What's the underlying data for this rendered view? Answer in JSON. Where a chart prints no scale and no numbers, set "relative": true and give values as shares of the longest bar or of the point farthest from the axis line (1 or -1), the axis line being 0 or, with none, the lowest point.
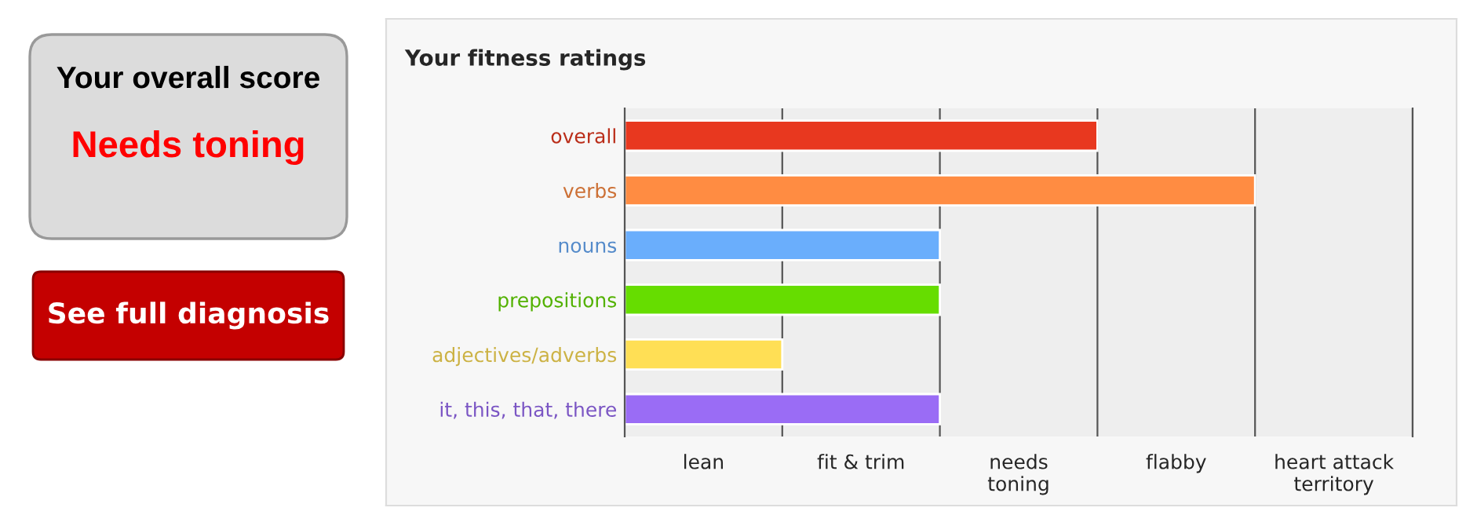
{
  "chart_data": [
    {
      "type": "other",
      "title": "Your overall score",
      "annotations": [
        "Needs toning",
        "See full diagnosis"
      ]
    },
    {
      "type": "bar",
      "orientation": "horizontal",
      "title": "Your fitness ratings",
      "categories": [
        "overall",
        "verbs",
        "nouns",
        "prepositions",
        "adjectives/adverbs",
        "it, this, that, there"
      ],
      "values": [
        0.75,
        1,
        0.5,
        0.5,
        0.25,
        0.5
      ],
      "relative": true,
      "colors": [
        "#e8381f",
        "#ff8c42",
        "#6aaefc",
        "#66dd00",
        "#ffdf55",
        "#9a6cf5"
      ],
      "ref_lines": [
        {
          "axis": "x",
          "value": 0.25
        },
        {
          "axis": "x",
          "value": 0.5
        },
        {
          "axis": "x",
          "value": 0.75
        },
        {
          "axis": "x",
          "value": 1
        },
        {
          "axis": "x",
          "value": 1.25
        }
      ],
      "annotations": [
        "lean",
        "fit & trim",
        "needs\ntoning",
        "flabby",
        "heart attack\nterritory"
      ]
    }
  ]
}
